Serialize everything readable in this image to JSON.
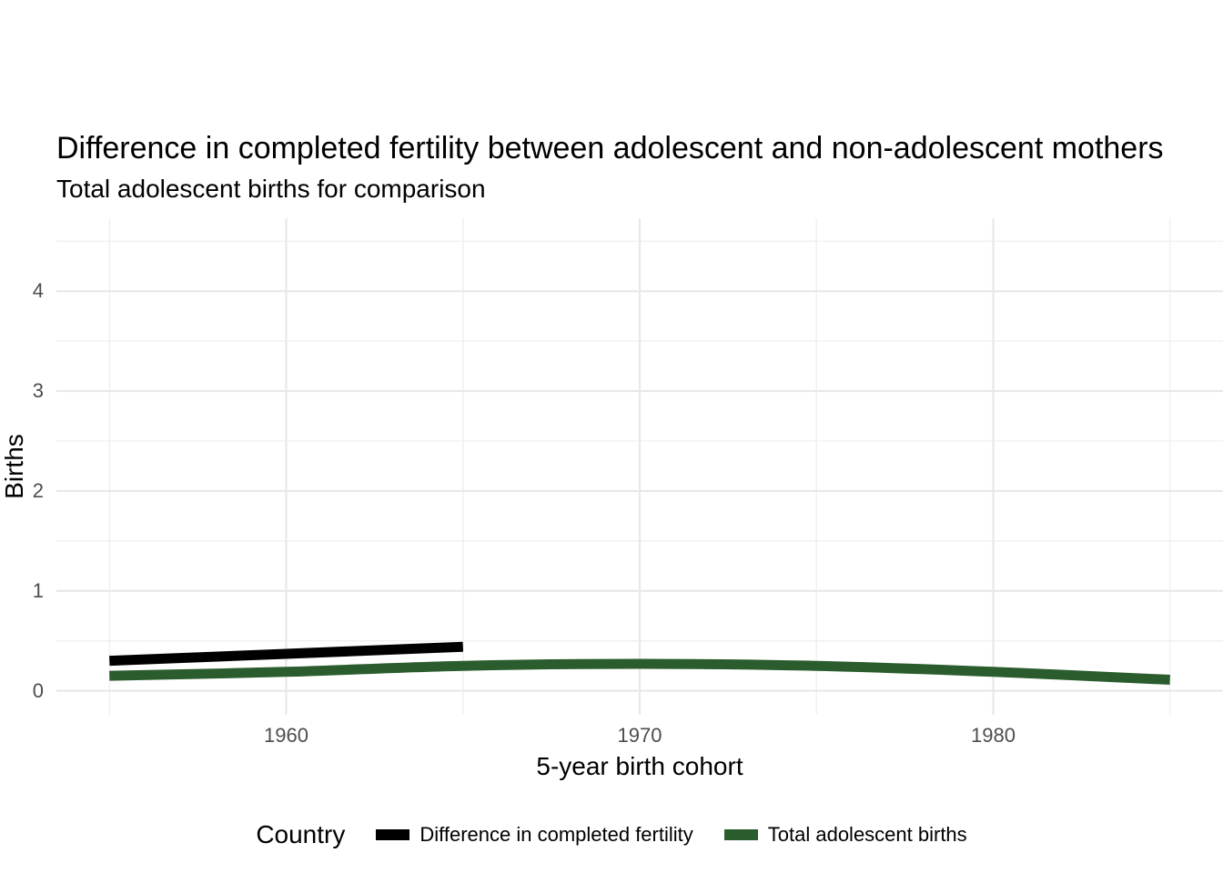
{
  "header": {
    "title": "Difference in completed fertility between adolescent and non-adolescent mothers",
    "subtitle": "Total adolescent births for comparison"
  },
  "chart_data": {
    "type": "line",
    "title": "Difference in completed fertility between adolescent and non-adolescent mothers",
    "subtitle": "Total adolescent births for comparison",
    "xlabel": "5-year birth cohort",
    "ylabel": "Births",
    "xlim": [
      1953.5,
      1986.5
    ],
    "ylim": [
      -0.24,
      4.73
    ],
    "xticks": [
      1960,
      1970,
      1980
    ],
    "yticks": [
      0,
      1,
      2,
      3,
      4
    ],
    "xticks_minor": [
      1955,
      1965,
      1975,
      1985
    ],
    "yticks_minor": [
      0.5,
      1.5,
      2.5,
      3.5,
      4.5
    ],
    "grid": "major+minor",
    "grid_major_color": "#e8e8e8",
    "grid_minor_color": "#efefef",
    "legend_position": "bottom",
    "legend_title": "Country",
    "series": [
      {
        "name": "Difference in completed fertility",
        "color": "#000000",
        "x": [
          1955,
          1960,
          1965
        ],
        "y": [
          0.3,
          0.37,
          0.44
        ]
      },
      {
        "name": "Total adolescent births",
        "color": "#2a5c2d",
        "x": [
          1955,
          1960,
          1965,
          1970,
          1975,
          1980,
          1985
        ],
        "y": [
          0.15,
          0.19,
          0.25,
          0.27,
          0.25,
          0.19,
          0.11
        ]
      }
    ]
  },
  "legend": {
    "title": "Country",
    "items": [
      {
        "label": "Difference in completed fertility",
        "color": "#000000"
      },
      {
        "label": "Total adolescent births",
        "color": "#2a5c2d"
      }
    ]
  }
}
